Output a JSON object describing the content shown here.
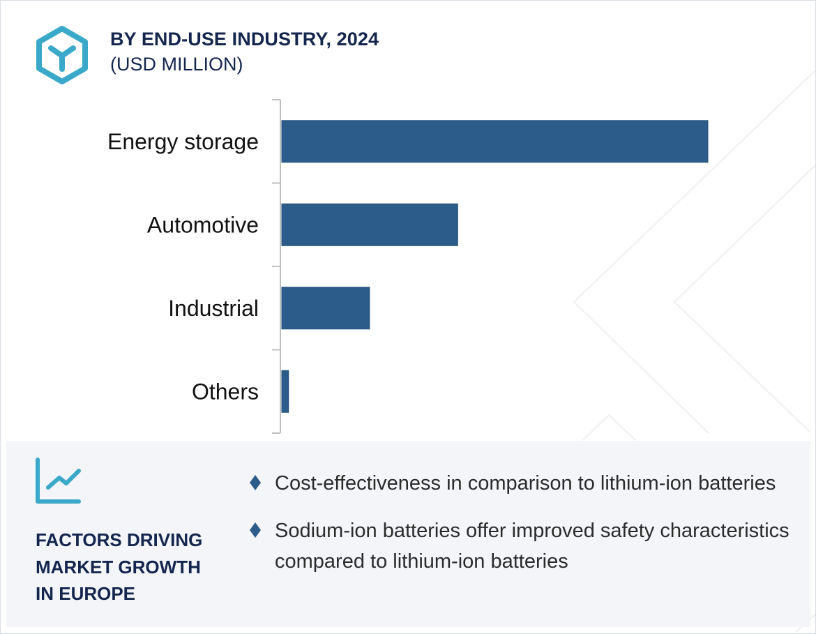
{
  "header": {
    "title": "BY END-USE INDUSTRY, 2024",
    "subtitle": "(USD MILLION)",
    "logo_icon": "hexagon-y-icon"
  },
  "colors": {
    "bar": "#2c5c8a",
    "accent": "#3aa8c8",
    "title": "#14264d",
    "panel_bg": "#f3f5f9",
    "axis": "#bfbfbf"
  },
  "chart_data": {
    "type": "bar",
    "orientation": "horizontal",
    "title": "BY END-USE INDUSTRY, 2024",
    "subtitle": "(USD MILLION)",
    "categories": [
      "Energy storage",
      "Automotive",
      "Industrial",
      "Others"
    ],
    "values": [
      100,
      41.3,
      20.6,
      1.6
    ],
    "value_note": "relative magnitudes estimated from bar lengths (no value axis shown); Energy storage = 100",
    "xlabel": "",
    "ylabel": "",
    "xlim": [
      0,
      100
    ],
    "grid": false,
    "legend": "none"
  },
  "factors": {
    "icon": "trend-chart-icon",
    "title_lines": [
      "FACTORS DRIVING",
      "MARKET GROWTH",
      "IN EUROPE"
    ],
    "bullets": [
      "Cost-effectiveness in comparison to lithium-ion batteries",
      "Sodium-ion batteries offer improved safety characteristics compared to lithium-ion batteries"
    ]
  }
}
